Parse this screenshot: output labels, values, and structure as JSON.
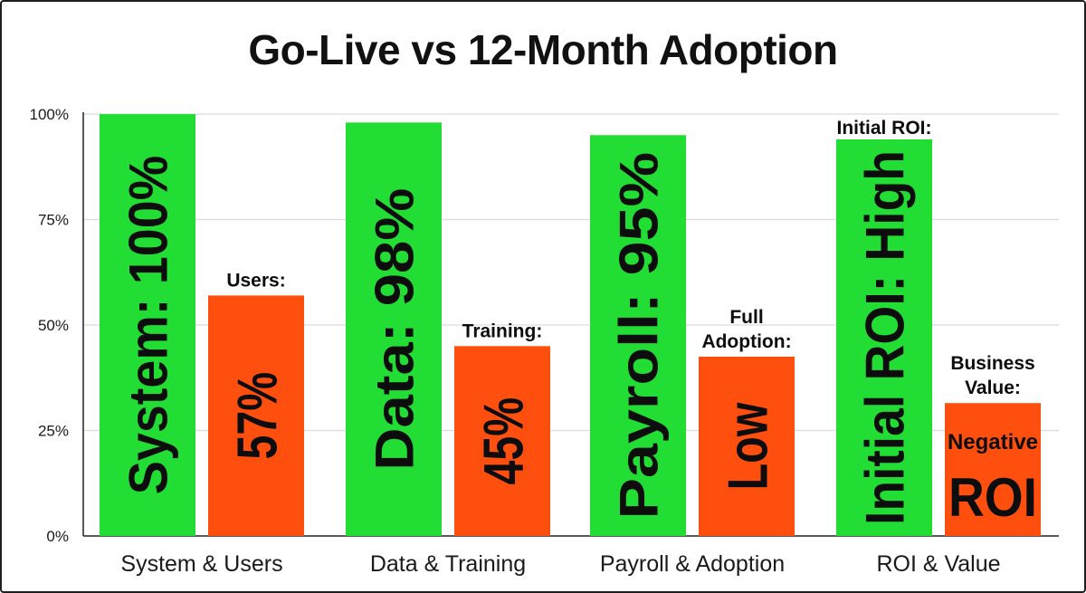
{
  "chart_data": {
    "type": "bar",
    "title": "Go-Live vs 12-Month Adoption",
    "ylim": [
      0,
      100
    ],
    "yticks": [
      {
        "value": 0,
        "label": "0%"
      },
      {
        "value": 25,
        "label": "25%"
      },
      {
        "value": 50,
        "label": "50%"
      },
      {
        "value": 75,
        "label": "75%"
      },
      {
        "value": 100,
        "label": "100%"
      }
    ],
    "grid": true,
    "categories": [
      "System & Users",
      "Data & Training",
      "Payroll & Adoption",
      "ROI & Value"
    ],
    "series": [
      {
        "color": "#22dd33",
        "values": [
          100,
          98,
          95,
          94
        ],
        "bar_labels": [
          "System: 100%",
          "Data:  98%",
          "Payroll:  95%",
          "Initial ROI: High"
        ],
        "annotations": [
          "",
          "",
          "",
          "Initial ROI:"
        ]
      },
      {
        "color": "#ff4f0f",
        "values": [
          57,
          45,
          42.5,
          31.5
        ],
        "bar_labels": [
          "57%",
          "45%",
          "Low",
          "Negative ROI"
        ],
        "annotations": [
          "Users:",
          "Training:",
          "Full Adoption:",
          "Business Value:"
        ]
      }
    ]
  }
}
